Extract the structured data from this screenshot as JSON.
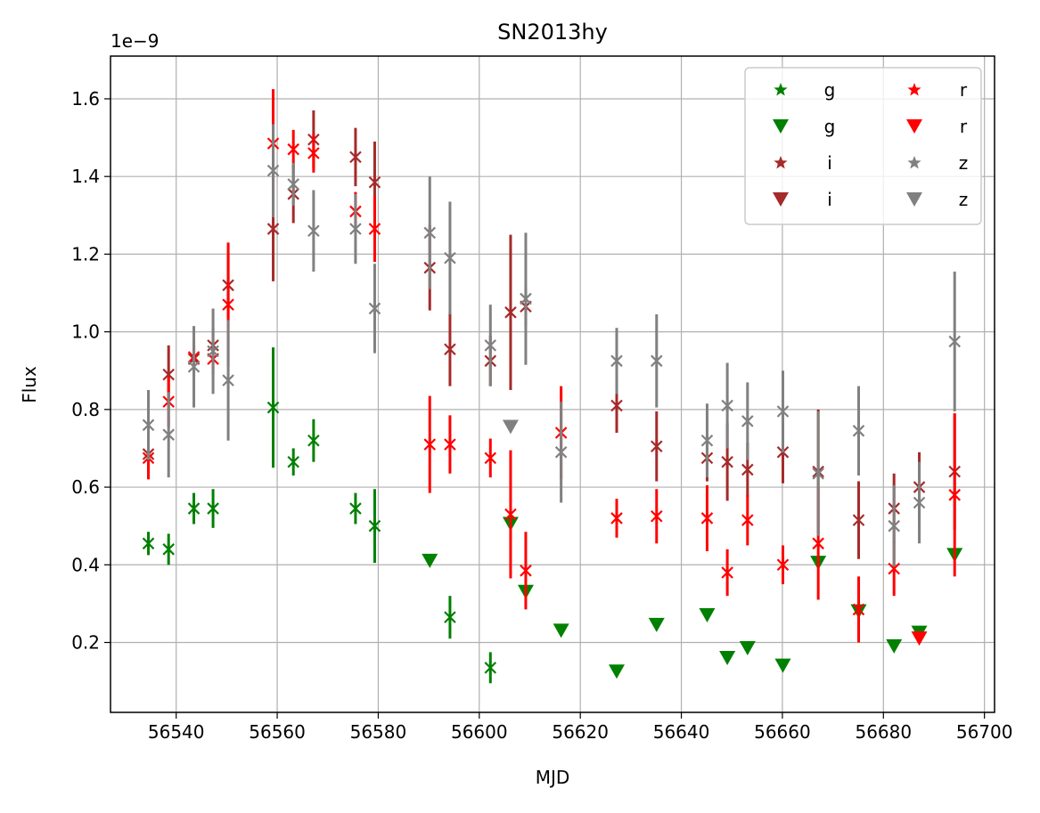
{
  "chart_data": {
    "type": "scatter",
    "title": "SN2013hy",
    "xlabel": "MJD",
    "ylabel": "Flux",
    "y_offset_text": "1e−9",
    "xlim": [
      56527,
      56702
    ],
    "ylim": [
      0.02,
      1.71
    ],
    "x_ticks": [
      56540,
      56560,
      56580,
      56600,
      56620,
      56640,
      56660,
      56680,
      56700
    ],
    "x_tick_labels": [
      "56540",
      "56560",
      "56580",
      "56600",
      "56620",
      "56640",
      "56660",
      "56680",
      "56700"
    ],
    "y_ticks": [
      0.2,
      0.4,
      0.6,
      0.8,
      1.0,
      1.2,
      1.4,
      1.6
    ],
    "y_tick_labels": [
      "0.2",
      "0.4",
      "0.6",
      "0.8",
      "1.0",
      "1.2",
      "1.4",
      "1.6"
    ],
    "grid": true,
    "legend_position": "top-right",
    "legend_columns": 2,
    "legend": [
      {
        "label": "g",
        "color": "#008000",
        "marker": "star"
      },
      {
        "label": "g",
        "color": "#008000",
        "marker": "triangle-down"
      },
      {
        "label": "i",
        "color": "#a52a2a",
        "marker": "star"
      },
      {
        "label": "i",
        "color": "#a52a2a",
        "marker": "triangle-down"
      },
      {
        "label": "r",
        "color": "#ff0000",
        "marker": "star"
      },
      {
        "label": "r",
        "color": "#ff0000",
        "marker": "triangle-down"
      },
      {
        "label": "z",
        "color": "#808080",
        "marker": "star"
      },
      {
        "label": "z",
        "color": "#808080",
        "marker": "triangle-down"
      }
    ],
    "series": [
      {
        "band": "g",
        "color": "#008000",
        "kind": "detection",
        "points": [
          {
            "x": 56534.5,
            "y": 0.455,
            "err": 0.03
          },
          {
            "x": 56538.5,
            "y": 0.44,
            "err": 0.04
          },
          {
            "x": 56543.5,
            "y": 0.545,
            "err": 0.04
          },
          {
            "x": 56547.3,
            "y": 0.545,
            "err": 0.05
          },
          {
            "x": 56559.2,
            "y": 0.805,
            "err": 0.155
          },
          {
            "x": 56563.2,
            "y": 0.665,
            "err": 0.035
          },
          {
            "x": 56567.2,
            "y": 0.72,
            "err": 0.055
          },
          {
            "x": 56575.5,
            "y": 0.545,
            "err": 0.04
          },
          {
            "x": 56579.3,
            "y": 0.5,
            "err": 0.095
          },
          {
            "x": 56594.2,
            "y": 0.265,
            "err": 0.055
          },
          {
            "x": 56602.2,
            "y": 0.135,
            "err": 0.04
          }
        ]
      },
      {
        "band": "g",
        "color": "#008000",
        "kind": "upper-limit",
        "points": [
          {
            "x": 56590.2,
            "y": 0.41
          },
          {
            "x": 56606.2,
            "y": 0.505
          },
          {
            "x": 56609.2,
            "y": 0.33
          },
          {
            "x": 56616.2,
            "y": 0.23
          },
          {
            "x": 56627.2,
            "y": 0.125
          },
          {
            "x": 56635.1,
            "y": 0.245
          },
          {
            "x": 56645.1,
            "y": 0.27
          },
          {
            "x": 56649.1,
            "y": 0.16
          },
          {
            "x": 56653.1,
            "y": 0.185
          },
          {
            "x": 56660.1,
            "y": 0.14
          },
          {
            "x": 56667.1,
            "y": 0.405
          },
          {
            "x": 56675.1,
            "y": 0.28
          },
          {
            "x": 56682.1,
            "y": 0.19
          },
          {
            "x": 56687.1,
            "y": 0.225
          },
          {
            "x": 56694.1,
            "y": 0.425
          }
        ]
      },
      {
        "band": "i",
        "color": "#a52a2a",
        "kind": "detection",
        "points": [
          {
            "x": 56534.5,
            "y": 0.685,
            "err": 0.04
          },
          {
            "x": 56538.5,
            "y": 0.89,
            "err": 0.075
          },
          {
            "x": 56543.5,
            "y": 0.93,
            "err": 0.045
          },
          {
            "x": 56547.3,
            "y": 0.965,
            "err": 0.045
          },
          {
            "x": 56550.3,
            "y": 1.12,
            "err": 0.085
          },
          {
            "x": 56559.2,
            "y": 1.265,
            "err": 0.135
          },
          {
            "x": 56563.2,
            "y": 1.355,
            "err": 0.075
          },
          {
            "x": 56567.2,
            "y": 1.495,
            "err": 0.075
          },
          {
            "x": 56575.5,
            "y": 1.45,
            "err": 0.075
          },
          {
            "x": 56579.3,
            "y": 1.385,
            "err": 0.105
          },
          {
            "x": 56590.2,
            "y": 1.165,
            "err": 0.11
          },
          {
            "x": 56594.2,
            "y": 0.955,
            "err": 0.095
          },
          {
            "x": 56602.2,
            "y": 0.925,
            "err": 0.065
          },
          {
            "x": 56606.2,
            "y": 1.05,
            "err": 0.2
          },
          {
            "x": 56609.2,
            "y": 1.065,
            "err": 0.05
          },
          {
            "x": 56627.2,
            "y": 0.81,
            "err": 0.07
          },
          {
            "x": 56635.1,
            "y": 0.705,
            "err": 0.09
          },
          {
            "x": 56645.1,
            "y": 0.675,
            "err": 0.06
          },
          {
            "x": 56649.1,
            "y": 0.665,
            "err": 0.1
          },
          {
            "x": 56653.1,
            "y": 0.645,
            "err": 0.07
          },
          {
            "x": 56660.1,
            "y": 0.69,
            "err": 0.08
          },
          {
            "x": 56667.1,
            "y": 0.64,
            "err": 0.16
          },
          {
            "x": 56675.1,
            "y": 0.515,
            "err": 0.1
          },
          {
            "x": 56682.1,
            "y": 0.545,
            "err": 0.09
          },
          {
            "x": 56687.1,
            "y": 0.6,
            "err": 0.09
          },
          {
            "x": 56694.1,
            "y": 0.64,
            "err": 0.15
          }
        ]
      },
      {
        "band": "r",
        "color": "#ff0000",
        "kind": "detection",
        "points": [
          {
            "x": 56534.5,
            "y": 0.675,
            "err": 0.055
          },
          {
            "x": 56538.5,
            "y": 0.82,
            "err": 0.065
          },
          {
            "x": 56543.5,
            "y": 0.935,
            "err": 0.03
          },
          {
            "x": 56547.3,
            "y": 0.93,
            "err": 0.04
          },
          {
            "x": 56550.3,
            "y": 1.07,
            "err": 0.16
          },
          {
            "x": 56559.2,
            "y": 1.485,
            "err": 0.14
          },
          {
            "x": 56563.2,
            "y": 1.47,
            "err": 0.05
          },
          {
            "x": 56567.2,
            "y": 1.46,
            "err": 0.05
          },
          {
            "x": 56575.5,
            "y": 1.31,
            "err": 0.05
          },
          {
            "x": 56579.3,
            "y": 1.265,
            "err": 0.085
          },
          {
            "x": 56590.2,
            "y": 0.71,
            "err": 0.125
          },
          {
            "x": 56594.2,
            "y": 0.71,
            "err": 0.075
          },
          {
            "x": 56602.2,
            "y": 0.675,
            "err": 0.05
          },
          {
            "x": 56606.2,
            "y": 0.53,
            "err": 0.165
          },
          {
            "x": 56609.2,
            "y": 0.385,
            "err": 0.1
          },
          {
            "x": 56616.2,
            "y": 0.74,
            "err": 0.12
          },
          {
            "x": 56627.2,
            "y": 0.52,
            "err": 0.05
          },
          {
            "x": 56635.1,
            "y": 0.525,
            "err": 0.07
          },
          {
            "x": 56645.1,
            "y": 0.52,
            "err": 0.085
          },
          {
            "x": 56649.1,
            "y": 0.38,
            "err": 0.06
          },
          {
            "x": 56653.1,
            "y": 0.515,
            "err": 0.065
          },
          {
            "x": 56660.1,
            "y": 0.4,
            "err": 0.05
          },
          {
            "x": 56667.1,
            "y": 0.455,
            "err": 0.145
          },
          {
            "x": 56675.1,
            "y": 0.285,
            "err": 0.085
          },
          {
            "x": 56682.1,
            "y": 0.39,
            "err": 0.07
          },
          {
            "x": 56694.1,
            "y": 0.58,
            "err": 0.21
          }
        ]
      },
      {
        "band": "r",
        "color": "#ff0000",
        "kind": "upper-limit",
        "points": [
          {
            "x": 56687.1,
            "y": 0.21
          }
        ]
      },
      {
        "band": "z",
        "color": "#808080",
        "kind": "detection",
        "points": [
          {
            "x": 56534.5,
            "y": 0.76,
            "err": 0.09
          },
          {
            "x": 56538.5,
            "y": 0.735,
            "err": 0.11
          },
          {
            "x": 56543.5,
            "y": 0.91,
            "err": 0.105
          },
          {
            "x": 56547.3,
            "y": 0.95,
            "err": 0.11
          },
          {
            "x": 56550.3,
            "y": 0.875,
            "err": 0.155
          },
          {
            "x": 56559.2,
            "y": 1.415,
            "err": 0.12
          },
          {
            "x": 56563.2,
            "y": 1.38,
            "err": 0.055
          },
          {
            "x": 56567.2,
            "y": 1.26,
            "err": 0.105
          },
          {
            "x": 56575.5,
            "y": 1.265,
            "err": 0.09
          },
          {
            "x": 56579.3,
            "y": 1.06,
            "err": 0.115
          },
          {
            "x": 56590.2,
            "y": 1.255,
            "err": 0.145
          },
          {
            "x": 56594.2,
            "y": 1.19,
            "err": 0.145
          },
          {
            "x": 56602.2,
            "y": 0.965,
            "err": 0.105
          },
          {
            "x": 56609.2,
            "y": 1.085,
            "err": 0.17
          },
          {
            "x": 56616.2,
            "y": 0.69,
            "err": 0.13
          },
          {
            "x": 56627.2,
            "y": 0.925,
            "err": 0.085
          },
          {
            "x": 56635.1,
            "y": 0.925,
            "err": 0.12
          },
          {
            "x": 56645.1,
            "y": 0.72,
            "err": 0.095
          },
          {
            "x": 56649.1,
            "y": 0.81,
            "err": 0.11
          },
          {
            "x": 56653.1,
            "y": 0.77,
            "err": 0.1
          },
          {
            "x": 56660.1,
            "y": 0.795,
            "err": 0.105
          },
          {
            "x": 56667.1,
            "y": 0.635,
            "err": 0.16
          },
          {
            "x": 56675.1,
            "y": 0.745,
            "err": 0.115
          },
          {
            "x": 56682.1,
            "y": 0.5,
            "err": 0.105
          },
          {
            "x": 56687.1,
            "y": 0.56,
            "err": 0.105
          },
          {
            "x": 56694.1,
            "y": 0.975,
            "err": 0.18
          }
        ]
      },
      {
        "band": "z",
        "color": "#808080",
        "kind": "upper-limit",
        "points": [
          {
            "x": 56606.2,
            "y": 0.755
          }
        ]
      }
    ]
  }
}
